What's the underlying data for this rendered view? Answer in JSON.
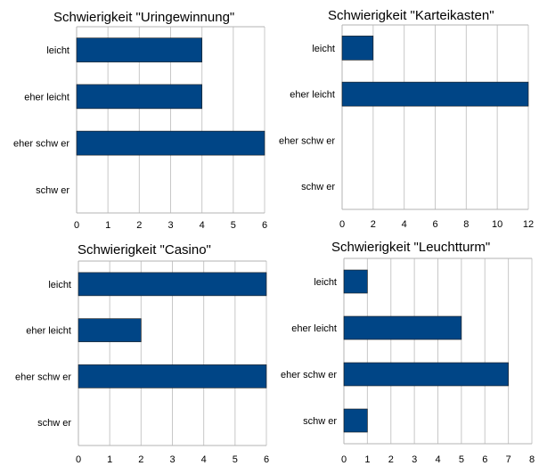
{
  "chart_data": [
    {
      "type": "bar",
      "orientation": "horizontal",
      "title": "Schwierigkeit \"Uringewinnung\"",
      "categories": [
        "leicht",
        "eher leicht",
        "eher schw er",
        "schw er"
      ],
      "values": [
        4,
        4,
        6,
        0
      ],
      "xlim": [
        0,
        6
      ],
      "xticks": [
        "0",
        "1",
        "2",
        "3",
        "4",
        "5",
        "6"
      ],
      "grid": true,
      "color": "#004586"
    },
    {
      "type": "bar",
      "orientation": "horizontal",
      "title": "Schwierigkeit \"Karteikasten\"",
      "categories": [
        "leicht",
        "eher leicht",
        "eher schw er",
        "schw er"
      ],
      "values": [
        2,
        12,
        0,
        0
      ],
      "xlim": [
        0,
        12
      ],
      "xticks": [
        "0",
        "2",
        "4",
        "6",
        "8",
        "10",
        "12"
      ],
      "grid": true,
      "color": "#004586"
    },
    {
      "type": "bar",
      "orientation": "horizontal",
      "title": "Schwierigkeit \"Casino\"",
      "categories": [
        "leicht",
        "eher leicht",
        "eher schw er",
        "schw er"
      ],
      "values": [
        6,
        2,
        6,
        0
      ],
      "xlim": [
        0,
        6
      ],
      "xticks": [
        "0",
        "1",
        "2",
        "3",
        "4",
        "5",
        "6"
      ],
      "grid": true,
      "color": "#004586"
    },
    {
      "type": "bar",
      "orientation": "horizontal",
      "title": "Schwierigkeit \"Leuchtturm\"",
      "categories": [
        "leicht",
        "eher leicht",
        "eher schw er",
        "schw er"
      ],
      "values": [
        1,
        5,
        7,
        1
      ],
      "xlim": [
        0,
        8
      ],
      "xticks": [
        "0",
        "1",
        "2",
        "3",
        "4",
        "5",
        "6",
        "7",
        "8"
      ],
      "grid": true,
      "color": "#004586"
    }
  ]
}
